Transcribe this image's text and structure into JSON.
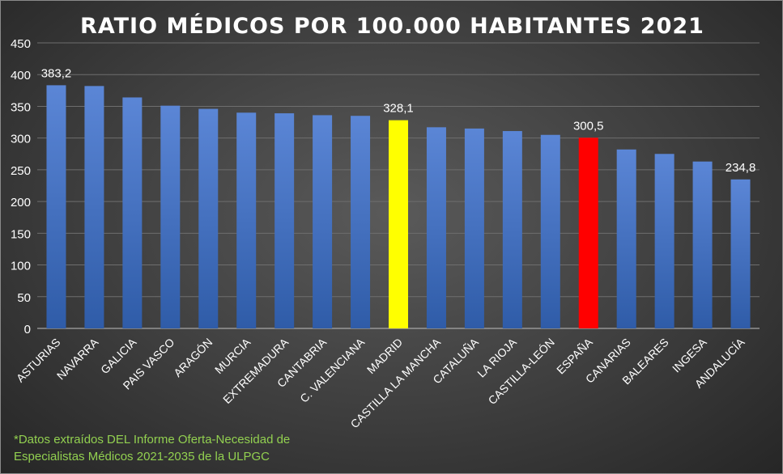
{
  "chart_data": {
    "type": "bar",
    "title": "RATIO MÉDICOS POR 100.000 HABITANTES 2021",
    "categories": [
      "ASTURIAS",
      "NAVARRA",
      "GALICIA",
      "PAIS VASCO",
      "ARAGÓN",
      "MURCIA",
      "EXTREMADURA",
      "CANTABRIA",
      "C. VALENCIANA",
      "MADRID",
      "CASTILLA LA MANCHA",
      "CATALUÑA",
      "LA RIOJA",
      "CASTILLA-LEÓN",
      "ESPAÑA",
      "CANARIAS",
      "BALEARES",
      "INGESA",
      "ANDALUCÍA"
    ],
    "values": [
      383.2,
      382,
      364,
      351,
      346,
      340,
      339,
      336,
      335,
      328.1,
      317,
      315,
      311,
      305,
      300.5,
      282,
      275,
      263,
      234.8
    ],
    "data_labels": {
      "0": "383,2",
      "9": "328,1",
      "14": "300,5",
      "18": "234,8"
    },
    "yticks": [
      0,
      50,
      100,
      150,
      200,
      250,
      300,
      350,
      400,
      450
    ],
    "ylim": [
      0,
      450
    ],
    "grid": true,
    "colors": {
      "default": "#4472c4",
      "highlight_madrid": "#ffff00",
      "highlight_espana": "#ff0000"
    },
    "highlight": {
      "MADRID": "#ffff00",
      "ESPAÑA": "#ff0000"
    },
    "xlabel": "",
    "ylabel": ""
  },
  "footnote": {
    "line1": "*Datos extraídos DEL Informe Oferta-Necesidad de",
    "line2": "Especialistas Médicos 2021-2035 de la ULPGC",
    "color": "#92d050"
  }
}
